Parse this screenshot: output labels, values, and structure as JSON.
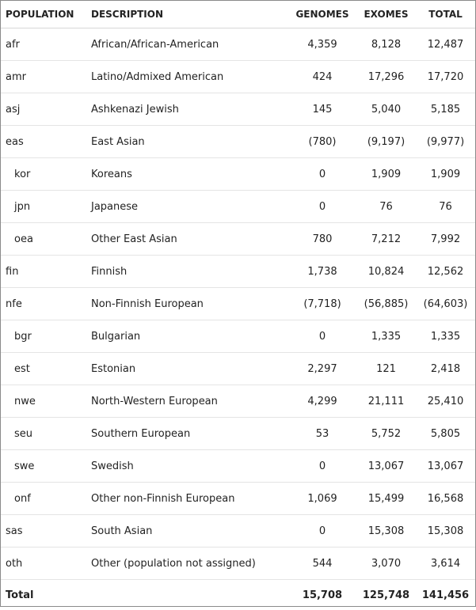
{
  "headers": {
    "population": "POPULATION",
    "description": "DESCRIPTION",
    "genomes": "GENOMES",
    "exomes": "EXOMES",
    "total": "TOTAL"
  },
  "rows": [
    {
      "pop": "afr",
      "desc": "African/African-American",
      "genomes": "4,359",
      "exomes": "8,128",
      "total": "12,487",
      "sub": false
    },
    {
      "pop": "amr",
      "desc": "Latino/Admixed American",
      "genomes": "424",
      "exomes": "17,296",
      "total": "17,720",
      "sub": false
    },
    {
      "pop": "asj",
      "desc": "Ashkenazi Jewish",
      "genomes": "145",
      "exomes": "5,040",
      "total": "5,185",
      "sub": false
    },
    {
      "pop": "eas",
      "desc": "East Asian",
      "genomes": "(780)",
      "exomes": "(9,197)",
      "total": "(9,977)",
      "sub": false
    },
    {
      "pop": "kor",
      "desc": "Koreans",
      "genomes": "0",
      "exomes": "1,909",
      "total": "1,909",
      "sub": true
    },
    {
      "pop": "jpn",
      "desc": "Japanese",
      "genomes": "0",
      "exomes": "76",
      "total": "76",
      "sub": true
    },
    {
      "pop": "oea",
      "desc": "Other East Asian",
      "genomes": "780",
      "exomes": "7,212",
      "total": "7,992",
      "sub": true
    },
    {
      "pop": "fin",
      "desc": "Finnish",
      "genomes": "1,738",
      "exomes": "10,824",
      "total": "12,562",
      "sub": false
    },
    {
      "pop": "nfe",
      "desc": "Non-Finnish European",
      "genomes": "(7,718)",
      "exomes": "(56,885)",
      "total": "(64,603)",
      "sub": false
    },
    {
      "pop": "bgr",
      "desc": "Bulgarian",
      "genomes": "0",
      "exomes": "1,335",
      "total": "1,335",
      "sub": true
    },
    {
      "pop": "est",
      "desc": "Estonian",
      "genomes": "2,297",
      "exomes": "121",
      "total": "2,418",
      "sub": true
    },
    {
      "pop": "nwe",
      "desc": "North-Western European",
      "genomes": "4,299",
      "exomes": "21,111",
      "total": "25,410",
      "sub": true
    },
    {
      "pop": "seu",
      "desc": "Southern European",
      "genomes": "53",
      "exomes": "5,752",
      "total": "5,805",
      "sub": true
    },
    {
      "pop": "swe",
      "desc": "Swedish",
      "genomes": "0",
      "exomes": "13,067",
      "total": "13,067",
      "sub": true
    },
    {
      "pop": "onf",
      "desc": "Other non-Finnish European",
      "genomes": "1,069",
      "exomes": "15,499",
      "total": "16,568",
      "sub": true
    },
    {
      "pop": "sas",
      "desc": "South Asian",
      "genomes": "0",
      "exomes": "15,308",
      "total": "15,308",
      "sub": false
    },
    {
      "pop": "oth",
      "desc": "Other (population not assigned)",
      "genomes": "544",
      "exomes": "3,070",
      "total": "3,614",
      "sub": false
    }
  ],
  "total": {
    "label": "Total",
    "genomes": "15,708",
    "exomes": "125,748",
    "total": "141,456"
  }
}
